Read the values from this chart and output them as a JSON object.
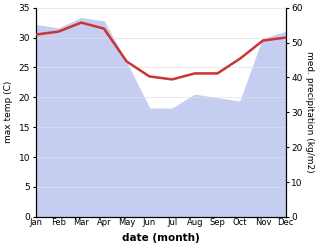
{
  "months": [
    "Jan",
    "Feb",
    "Mar",
    "Apr",
    "May",
    "Jun",
    "Jul",
    "Aug",
    "Sep",
    "Oct",
    "Nov",
    "Dec"
  ],
  "temp": [
    30.5,
    31.0,
    32.5,
    31.5,
    26.0,
    23.5,
    23.0,
    24.0,
    24.0,
    26.5,
    29.5,
    30.0
  ],
  "precip": [
    55,
    54,
    57,
    56,
    44,
    31,
    31,
    35,
    34,
    33,
    51,
    53
  ],
  "temp_color": "#cc3333",
  "precip_fill_color": "#c5cdf0",
  "temp_ylim": [
    0,
    35
  ],
  "precip_ylim": [
    0,
    60
  ],
  "temp_ylabel": "max temp (C)",
  "precip_ylabel": "med. precipitation (kg/m2)",
  "xlabel": "date (month)",
  "temp_yticks": [
    0,
    5,
    10,
    15,
    20,
    25,
    30,
    35
  ],
  "precip_yticks": [
    0,
    10,
    20,
    30,
    40,
    50,
    60
  ],
  "background_color": "#ffffff",
  "line_width": 1.8
}
